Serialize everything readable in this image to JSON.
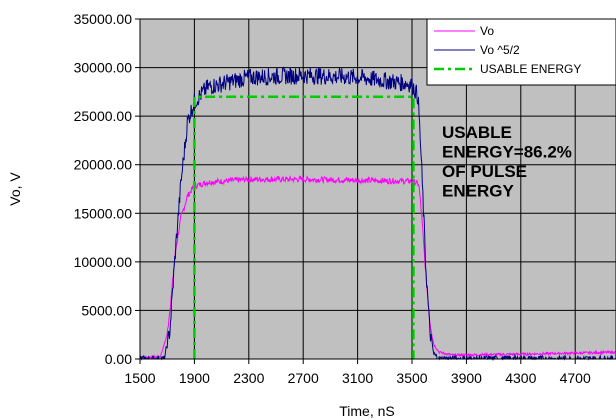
{
  "chart_data": {
    "type": "line",
    "xlabel": "Time, nS",
    "ylabel": "Vo, V",
    "xlim": [
      1500,
      5000
    ],
    "ylim": [
      0,
      35000
    ],
    "x_ticks": [
      1500,
      1900,
      2300,
      2700,
      3100,
      3500,
      3900,
      4300,
      4700
    ],
    "y_ticks": [
      "0.00",
      "5000.00",
      "10000.00",
      "15000.00",
      "20000.00",
      "25000.00",
      "30000.00",
      "35000.00"
    ],
    "y_tick_values": [
      0,
      5000,
      10000,
      15000,
      20000,
      25000,
      30000,
      35000
    ],
    "grid": true,
    "plot_background": "#c0c0c0",
    "legend_position": "top-right",
    "series": [
      {
        "name": "Vo",
        "color": "#ff00ff",
        "style": "solid",
        "noise": 300,
        "points": [
          [
            1500,
            150
          ],
          [
            1650,
            250
          ],
          [
            1700,
            2500
          ],
          [
            1730,
            6500
          ],
          [
            1760,
            11000
          ],
          [
            1800,
            14500
          ],
          [
            1850,
            16800
          ],
          [
            1900,
            17800
          ],
          [
            2000,
            18200
          ],
          [
            2300,
            18500
          ],
          [
            2700,
            18500
          ],
          [
            3100,
            18400
          ],
          [
            3500,
            18300
          ],
          [
            3550,
            18000
          ],
          [
            3570,
            15000
          ],
          [
            3600,
            9000
          ],
          [
            3630,
            4000
          ],
          [
            3660,
            1500
          ],
          [
            3700,
            700
          ],
          [
            3800,
            400
          ],
          [
            4300,
            500
          ],
          [
            5000,
            700
          ]
        ]
      },
      {
        "name": "Vo ^5/2",
        "color": "#000080",
        "style": "solid",
        "noise": 900,
        "points": [
          [
            1500,
            0
          ],
          [
            1680,
            0
          ],
          [
            1720,
            3000
          ],
          [
            1760,
            11000
          ],
          [
            1800,
            18000
          ],
          [
            1850,
            24500
          ],
          [
            1900,
            26500
          ],
          [
            2000,
            28000
          ],
          [
            2300,
            29000
          ],
          [
            2700,
            29200
          ],
          [
            3100,
            29000
          ],
          [
            3500,
            28300
          ],
          [
            3545,
            27000
          ],
          [
            3570,
            20000
          ],
          [
            3600,
            10000
          ],
          [
            3630,
            3000
          ],
          [
            3660,
            500
          ],
          [
            3700,
            0
          ],
          [
            5000,
            0
          ]
        ]
      },
      {
        "name": "USABLE ENERGY",
        "color": "#00cc00",
        "style": "dashdot",
        "noise": 0,
        "points": [
          [
            1900,
            0
          ],
          [
            1900,
            27000
          ],
          [
            3510,
            27000
          ],
          [
            3510,
            0
          ]
        ]
      }
    ],
    "annotation": [
      "USABLE",
      "ENERGY=86.2%",
      "OF PULSE",
      "ENERGY"
    ]
  }
}
